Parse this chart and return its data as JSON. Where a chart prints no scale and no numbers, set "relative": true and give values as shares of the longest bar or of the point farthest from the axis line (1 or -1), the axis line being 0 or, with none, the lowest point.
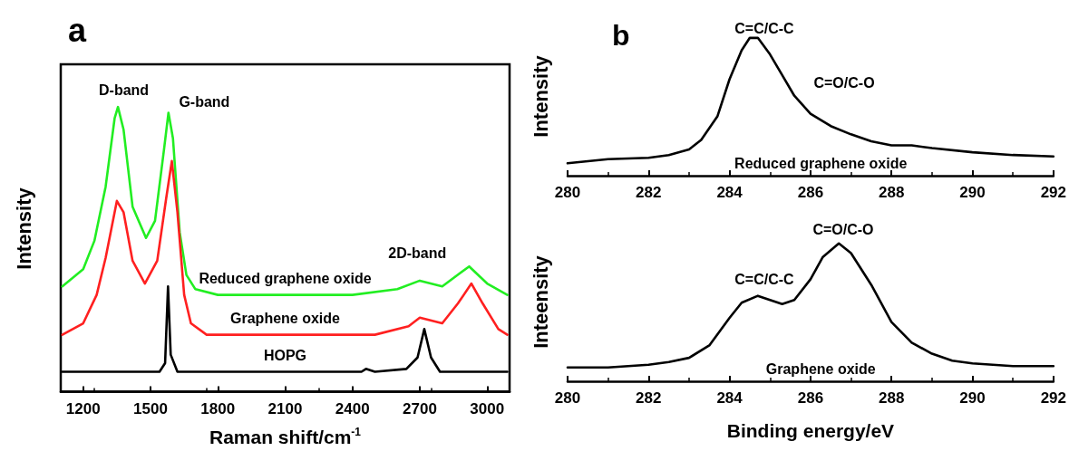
{
  "chart_data": [
    {
      "type": "line",
      "title": "a",
      "xlabel": "Raman shift/cm$^{-1}$",
      "ylabel": "Intensity",
      "relative": true,
      "marker": "none",
      "xlim": [
        1100,
        3100
      ],
      "xticks": [
        1200,
        1500,
        1800,
        2100,
        2400,
        2700,
        3000
      ],
      "annotations": [
        "D-band",
        "G-band",
        "2D-band"
      ],
      "series": [
        {
          "name": "Reduced graphene oxide",
          "color": "#22ee22",
          "x": [
            1107,
            1200,
            1250,
            1300,
            1340,
            1355,
            1380,
            1420,
            1480,
            1520,
            1560,
            1580,
            1600,
            1630,
            1660,
            1700,
            1800,
            2100,
            2400,
            2600,
            2700,
            2800,
            2920,
            3000,
            3090
          ],
          "values": [
            0.37,
            0.43,
            0.53,
            0.72,
            0.96,
            1.0,
            0.92,
            0.65,
            0.54,
            0.6,
            0.85,
            0.98,
            0.89,
            0.56,
            0.41,
            0.36,
            0.34,
            0.34,
            0.34,
            0.36,
            0.39,
            0.37,
            0.44,
            0.38,
            0.34
          ]
        },
        {
          "name": "Graphene oxide",
          "color": "#ff2020",
          "x": [
            1107,
            1200,
            1260,
            1300,
            1350,
            1380,
            1420,
            1475,
            1530,
            1570,
            1595,
            1620,
            1650,
            1680,
            1750,
            2100,
            2500,
            2650,
            2700,
            2800,
            2870,
            2930,
            2980,
            3050,
            3090
          ],
          "values": [
            0.2,
            0.24,
            0.34,
            0.47,
            0.67,
            0.63,
            0.46,
            0.38,
            0.46,
            0.68,
            0.81,
            0.63,
            0.34,
            0.24,
            0.2,
            0.2,
            0.2,
            0.23,
            0.26,
            0.24,
            0.31,
            0.38,
            0.31,
            0.22,
            0.2
          ]
        },
        {
          "name": "HOPG",
          "color": "#000000",
          "x": [
            1107,
            1540,
            1565,
            1578,
            1590,
            1620,
            2100,
            2440,
            2460,
            2500,
            2640,
            2690,
            2720,
            2750,
            2790,
            3090
          ],
          "values": [
            0.07,
            0.07,
            0.1,
            0.37,
            0.13,
            0.07,
            0.07,
            0.07,
            0.08,
            0.07,
            0.08,
            0.12,
            0.22,
            0.12,
            0.07,
            0.07
          ]
        }
      ]
    },
    {
      "type": "line",
      "title": "b",
      "ylabel": "Intensity",
      "relative": true,
      "marker": "none",
      "xlim": [
        280,
        292
      ],
      "xticks": [
        280,
        282,
        284,
        286,
        288,
        290,
        292
      ],
      "annotations": [
        "C=C/C-C",
        "C=O/C-O"
      ],
      "series": [
        {
          "name": "Reduced graphene oxide",
          "color": "#000000",
          "x": [
            280,
            281,
            282,
            282.5,
            283,
            283.3,
            283.7,
            284,
            284.3,
            284.5,
            284.7,
            285,
            285.3,
            285.6,
            286,
            286.5,
            287,
            287.5,
            288,
            288.5,
            289,
            290,
            291,
            292
          ],
          "values": [
            0.09,
            0.12,
            0.13,
            0.15,
            0.19,
            0.26,
            0.43,
            0.7,
            0.91,
            1.0,
            1.0,
            0.88,
            0.73,
            0.58,
            0.45,
            0.36,
            0.3,
            0.25,
            0.22,
            0.22,
            0.2,
            0.17,
            0.15,
            0.14
          ]
        }
      ]
    },
    {
      "type": "line",
      "xlabel": "Binding energy/eV",
      "ylabel": "Inteensity",
      "relative": true,
      "marker": "none",
      "xlim": [
        280,
        292
      ],
      "xticks": [
        280,
        282,
        284,
        286,
        288,
        290,
        292
      ],
      "annotations": [
        "C=O/C-O",
        "C=C/C-C"
      ],
      "series": [
        {
          "name": "Graphene oxide",
          "color": "#000000",
          "x": [
            280,
            281,
            282,
            282.5,
            283,
            283.5,
            284,
            284.3,
            284.7,
            285,
            285.3,
            285.6,
            286,
            286.3,
            286.7,
            287,
            287.5,
            288,
            288.5,
            289,
            289.5,
            290,
            291,
            292
          ],
          "values": [
            0.1,
            0.1,
            0.12,
            0.14,
            0.17,
            0.26,
            0.46,
            0.57,
            0.62,
            0.59,
            0.56,
            0.59,
            0.74,
            0.9,
            1.0,
            0.93,
            0.7,
            0.43,
            0.28,
            0.2,
            0.15,
            0.13,
            0.11,
            0.11
          ]
        }
      ]
    }
  ]
}
